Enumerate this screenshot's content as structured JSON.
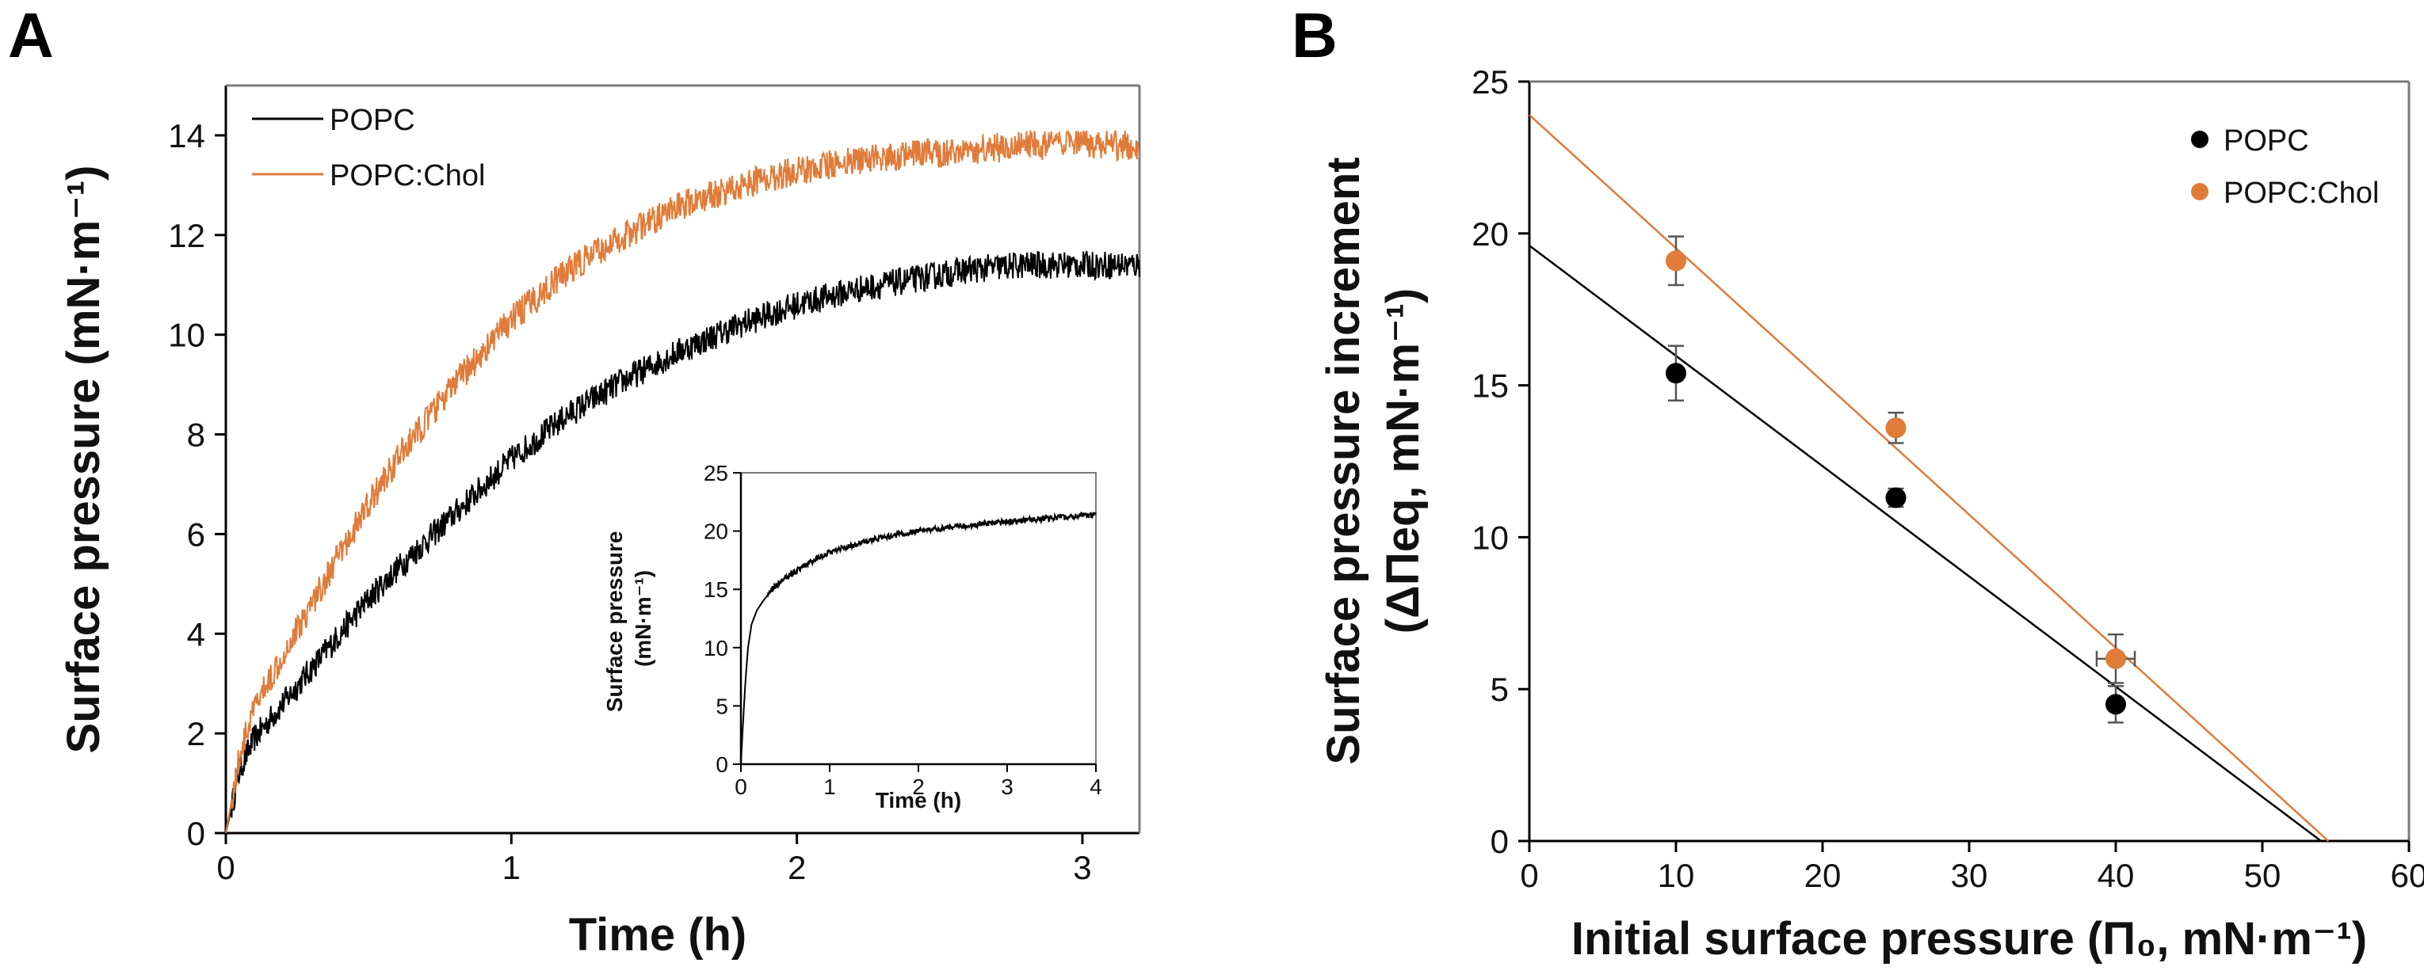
{
  "chart_data": [
    {
      "panel": "A",
      "type": "line",
      "xlabel": "Time (h)",
      "ylabel": "Surface pressure (mN·m⁻¹)",
      "xlim": [
        0,
        3.2
      ],
      "ylim": [
        0,
        15
      ],
      "xticks": [
        0,
        1,
        2,
        3
      ],
      "yticks": [
        0,
        2,
        4,
        6,
        8,
        10,
        12,
        14
      ],
      "legend": "top-left",
      "series": [
        {
          "name": "POPC",
          "color": "#000000",
          "x": [
            0,
            0.05,
            0.1,
            0.2,
            0.3,
            0.4,
            0.5,
            0.6,
            0.8,
            1.0,
            1.2,
            1.4,
            1.6,
            1.8,
            2.0,
            2.2,
            2.4,
            2.6,
            2.8,
            3.0,
            3.2
          ],
          "values": [
            0,
            1.3,
            1.9,
            2.6,
            3.3,
            4.0,
            4.7,
            5.3,
            6.4,
            7.5,
            8.4,
            9.1,
            9.7,
            10.2,
            10.6,
            10.9,
            11.1,
            11.3,
            11.4,
            11.4,
            11.4
          ]
        },
        {
          "name": "POPC:Chol",
          "color": "#e07b39",
          "x": [
            0,
            0.05,
            0.1,
            0.2,
            0.3,
            0.4,
            0.5,
            0.6,
            0.8,
            1.0,
            1.2,
            1.4,
            1.6,
            1.8,
            2.0,
            2.2,
            2.4,
            2.6,
            2.8,
            3.0,
            3.2
          ],
          "values": [
            0,
            1.6,
            2.5,
            3.6,
            4.6,
            5.6,
            6.6,
            7.5,
            9.0,
            10.3,
            11.3,
            12.0,
            12.6,
            13.0,
            13.3,
            13.5,
            13.6,
            13.7,
            13.8,
            13.8,
            13.8
          ]
        }
      ],
      "inset": {
        "type": "line",
        "xlabel": "Time (h)",
        "ylabel": "Surface pressure (mN·m⁻¹)",
        "xlim": [
          0,
          4
        ],
        "ylim": [
          0,
          25
        ],
        "xticks": [
          0,
          1,
          2,
          3,
          4
        ],
        "yticks": [
          0,
          5,
          10,
          15,
          20,
          25
        ],
        "x": [
          0,
          0.02,
          0.05,
          0.08,
          0.12,
          0.18,
          0.25,
          0.35,
          0.5,
          0.75,
          1.0,
          1.5,
          2.0,
          2.5,
          3.0,
          3.5,
          4.0
        ],
        "values": [
          0,
          3,
          7,
          10,
          12,
          13.2,
          14.0,
          15.0,
          16.0,
          17.2,
          18.2,
          19.3,
          20.0,
          20.4,
          20.8,
          21.1,
          21.4
        ],
        "color": "#000000"
      }
    },
    {
      "panel": "B",
      "type": "scatter",
      "xlabel": "Initial surface pressure (Π₀, mN·m⁻¹)",
      "ylabel": "Surface pressure increment (ΔΠeq, mN·m⁻¹)",
      "ylabel_line1": "Surface pressure increment",
      "ylabel_line2": "(ΔΠeq, mN·m⁻¹)",
      "xlim": [
        0,
        60
      ],
      "ylim": [
        0,
        25
      ],
      "xticks": [
        0,
        10,
        20,
        30,
        40,
        50,
        60
      ],
      "yticks": [
        0,
        5,
        10,
        15,
        20,
        25
      ],
      "legend": "top-right",
      "series": [
        {
          "name": "POPC",
          "color": "#000000",
          "x": [
            10,
            25,
            40
          ],
          "values": [
            15.4,
            11.3,
            4.5
          ],
          "yerr": [
            0.9,
            0.3,
            0.6
          ],
          "xerr": [
            0,
            0,
            0
          ],
          "fit": {
            "intercept": 19.6,
            "x_intercept": 54.0
          }
        },
        {
          "name": "POPC:Chol",
          "color": "#e07b39",
          "x": [
            10,
            25,
            40
          ],
          "values": [
            19.1,
            13.6,
            6.0
          ],
          "yerr": [
            0.8,
            0.5,
            0.8
          ],
          "xerr": [
            0.4,
            0.4,
            1.3
          ],
          "fit": {
            "intercept": 23.9,
            "x_intercept": 54.5
          }
        }
      ]
    }
  ]
}
